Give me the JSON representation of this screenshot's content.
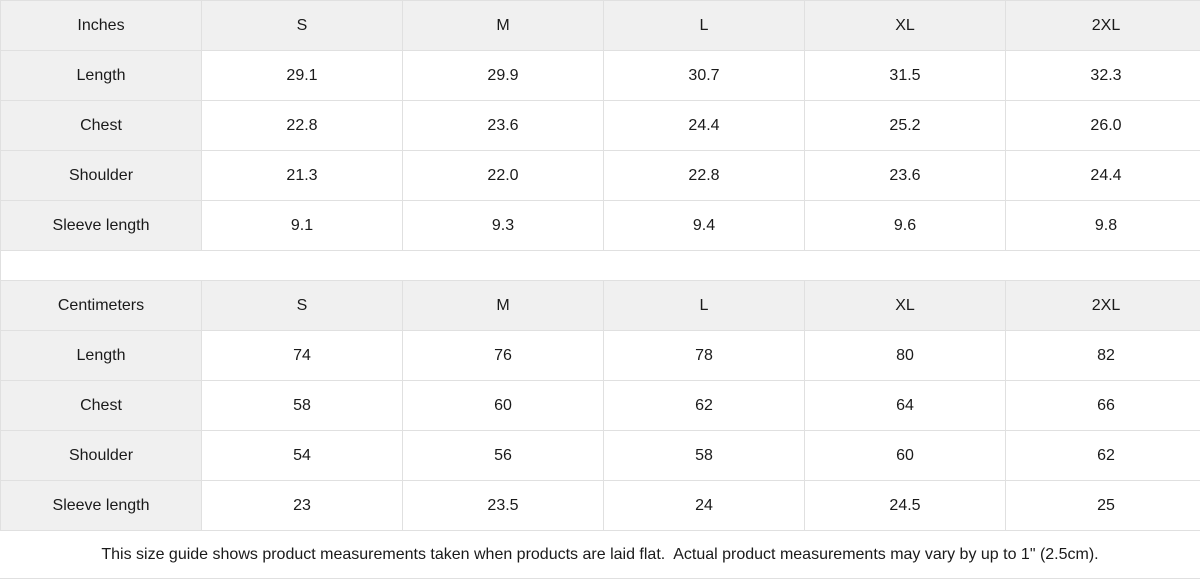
{
  "tables": [
    {
      "unit_label": "Inches",
      "columns": [
        "S",
        "M",
        "L",
        "XL",
        "2XL"
      ],
      "rows": [
        {
          "label": "Length",
          "values": [
            "29.1",
            "29.9",
            "30.7",
            "31.5",
            "32.3"
          ]
        },
        {
          "label": "Chest",
          "values": [
            "22.8",
            "23.6",
            "24.4",
            "25.2",
            "26.0"
          ]
        },
        {
          "label": "Shoulder",
          "values": [
            "21.3",
            "22.0",
            "22.8",
            "23.6",
            "24.4"
          ]
        },
        {
          "label": "Sleeve length",
          "values": [
            "9.1",
            "9.3",
            "9.4",
            "9.6",
            "9.8"
          ]
        }
      ]
    },
    {
      "unit_label": "Centimeters",
      "columns": [
        "S",
        "M",
        "L",
        "XL",
        "2XL"
      ],
      "rows": [
        {
          "label": "Length",
          "values": [
            "74",
            "76",
            "78",
            "80",
            "82"
          ]
        },
        {
          "label": "Chest",
          "values": [
            "58",
            "60",
            "62",
            "64",
            "66"
          ]
        },
        {
          "label": "Shoulder",
          "values": [
            "54",
            "56",
            "58",
            "60",
            "62"
          ]
        },
        {
          "label": "Sleeve length",
          "values": [
            "23",
            "23.5",
            "24",
            "24.5",
            "25"
          ]
        }
      ]
    }
  ],
  "footer": {
    "note": "This size guide shows product measurements taken when products are laid flat.  Actual product measurements may vary by up to 1\" (2.5cm)."
  },
  "colors": {
    "header_bg": "#f0f0f0",
    "border": "#e0e0e0",
    "text": "#1a1a1a",
    "background": "#ffffff"
  }
}
